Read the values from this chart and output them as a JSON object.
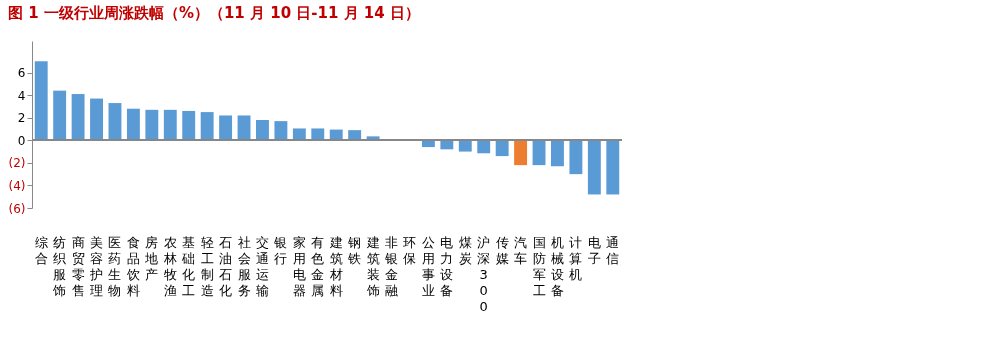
{
  "chart_data": {
    "type": "bar",
    "title": "图 1 一级行业周涨跌幅（%）（11 月 10 日-11 月 14 日）",
    "categories": [
      "综合",
      "纺织服饰",
      "商贸零售",
      "美容护理",
      "医药生物",
      "食品饮料",
      "房地产",
      "农林牧渔",
      "基础化工",
      "轻工制造",
      "石油石化",
      "社会服务",
      "交通运输",
      "银行",
      "家用电器",
      "有色金属",
      "建筑材料",
      "钢铁",
      "建筑装饰",
      "非银金融",
      "环保",
      "公用事业",
      "电力设备",
      "煤炭",
      "沪深300",
      "传媒",
      "汽车",
      "国防军工",
      "机械设备",
      "计算机",
      "电子",
      "通信"
    ],
    "values": [
      7.0,
      4.4,
      4.1,
      3.7,
      3.3,
      2.8,
      2.7,
      2.7,
      2.6,
      2.5,
      2.2,
      2.2,
      1.8,
      1.7,
      1.05,
      1.05,
      0.95,
      0.9,
      0.35,
      0.05,
      0.02,
      -0.6,
      -0.8,
      -1.0,
      -1.15,
      -1.4,
      -2.2,
      -2.2,
      -2.3,
      -3.0,
      -4.8,
      -4.8
    ],
    "colors": [
      "#5b9bd5",
      "#5b9bd5",
      "#5b9bd5",
      "#5b9bd5",
      "#5b9bd5",
      "#5b9bd5",
      "#5b9bd5",
      "#5b9bd5",
      "#5b9bd5",
      "#5b9bd5",
      "#5b9bd5",
      "#5b9bd5",
      "#5b9bd5",
      "#5b9bd5",
      "#5b9bd5",
      "#5b9bd5",
      "#5b9bd5",
      "#5b9bd5",
      "#5b9bd5",
      "#5b9bd5",
      "#5b9bd5",
      "#5b9bd5",
      "#5b9bd5",
      "#5b9bd5",
      "#5b9bd5",
      "#5b9bd5",
      "#ed7d31",
      "#5b9bd5",
      "#5b9bd5",
      "#5b9bd5",
      "#5b9bd5",
      "#5b9bd5"
    ],
    "ylim": [
      -6,
      8.8
    ],
    "yticks": [
      {
        "value": -6,
        "label": "(6)"
      },
      {
        "value": -4,
        "label": "(4)"
      },
      {
        "value": -2,
        "label": "(2)"
      },
      0,
      2,
      4,
      6
    ]
  }
}
